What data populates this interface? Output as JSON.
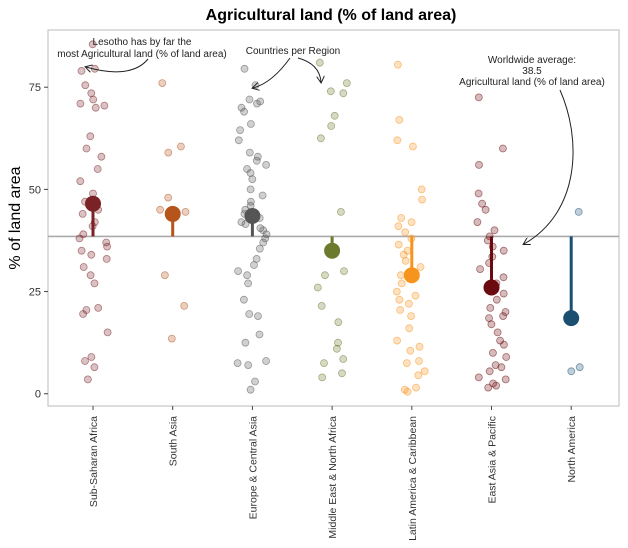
{
  "chart_data": {
    "type": "scatter",
    "title": "Agricultural land (% of land area)",
    "ylabel": "% of land area",
    "xlabel": "",
    "ylim": [
      -3,
      89
    ],
    "yticks": [
      0,
      25,
      50,
      75
    ],
    "grid": false,
    "categories": [
      "Sub-Saharan Africa",
      "South Asia",
      "Europe & Central Asia",
      "Middle East & North Africa",
      "Latin America & Caribbean",
      "East Asia & Pacific",
      "North America"
    ],
    "colors": [
      "#7b2226",
      "#b5541b",
      "#555555",
      "#6b7a2c",
      "#f7941d",
      "#6b0a0f",
      "#1b4f72"
    ],
    "world_average": 38.5,
    "region_means": [
      46.5,
      44,
      43.5,
      35,
      29,
      26,
      18.5
    ],
    "points": [
      [
        85.5,
        79.5,
        79,
        75.5,
        73.5,
        72,
        71,
        70.5,
        70,
        63,
        60,
        58,
        55,
        52,
        49,
        47,
        45,
        44,
        42,
        41,
        39,
        38,
        37,
        36,
        35,
        34,
        33,
        31,
        29,
        27,
        21,
        20.5,
        19.5,
        15,
        9,
        8,
        6.5,
        3.5
      ],
      [
        76,
        60.5,
        59,
        48,
        45,
        44.5,
        29,
        21.5,
        13.5
      ],
      [
        79.5,
        75.5,
        72,
        71.5,
        71,
        70,
        69,
        66,
        64.5,
        62,
        59,
        58,
        57,
        56,
        55,
        54,
        52.5,
        50,
        48.5,
        47,
        46,
        45,
        44,
        43,
        42,
        41.5,
        40.5,
        40,
        39,
        38,
        37,
        35.5,
        33,
        31.5,
        30,
        29,
        27,
        23,
        19.5,
        19,
        14.5,
        12.5,
        8,
        7.5,
        7,
        3,
        1
      ],
      [
        81,
        76,
        74,
        73.5,
        68,
        65.5,
        62.5,
        44.5,
        30,
        29,
        26,
        21.5,
        17.5,
        12.5,
        11,
        8.5,
        7.5,
        5,
        4
      ],
      [
        80.5,
        67,
        62,
        60.5,
        50,
        47.5,
        43,
        42,
        41,
        39.5,
        38,
        36.5,
        35,
        34,
        32.5,
        31,
        29,
        27,
        25,
        24,
        23,
        22,
        20.5,
        19,
        16,
        13,
        11.5,
        10.5,
        8,
        7.5,
        5.5,
        4.5,
        1.5,
        1,
        0.5
      ],
      [
        72.5,
        60,
        56,
        49,
        46.5,
        45,
        42,
        40,
        38.5,
        37.5,
        36,
        35,
        33.5,
        32,
        30.5,
        28.5,
        27,
        26,
        24.5,
        23,
        21,
        20,
        19,
        18.5,
        17,
        15,
        13,
        12,
        10,
        9,
        7,
        6.5,
        5.5,
        4,
        3.5,
        2.5,
        2,
        1.5
      ],
      [
        44.5,
        6.5,
        5.5
      ]
    ]
  },
  "annotations": {
    "lesotho": [
      "Lesotho has by far the",
      "most Agricultural land (% of land area)"
    ],
    "regions": [
      "Countries per Region"
    ],
    "world": [
      "Worldwide average:",
      "38.5",
      "Agricultural land (% of land area)"
    ]
  }
}
